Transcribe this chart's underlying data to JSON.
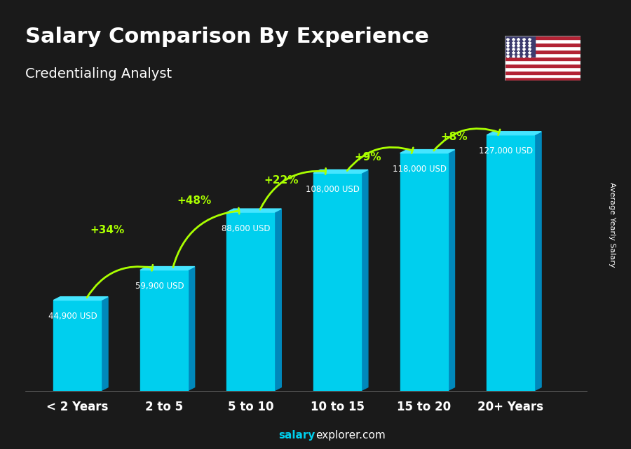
{
  "title": "Salary Comparison By Experience",
  "subtitle": "Credentialing Analyst",
  "ylabel": "Average Yearly Salary",
  "footer": "salaryexplorer.com",
  "categories": [
    "< 2 Years",
    "2 to 5",
    "5 to 10",
    "10 to 15",
    "15 to 20",
    "20+ Years"
  ],
  "values": [
    44900,
    59900,
    88600,
    108000,
    118000,
    127000
  ],
  "salary_labels": [
    "44,900 USD",
    "59,900 USD",
    "88,600 USD",
    "108,000 USD",
    "118,000 USD",
    "127,000 USD"
  ],
  "pct_labels": [
    "+34%",
    "+48%",
    "+22%",
    "+9%",
    "+8%"
  ],
  "bar_color_top": "#00CFFF",
  "bar_color_mid": "#00AADD",
  "bar_color_side": "#007AAA",
  "bar_color_bottom": "#005580",
  "bg_color": "#2a2a2a",
  "title_color": "#FFFFFF",
  "subtitle_color": "#FFFFFF",
  "salary_label_color": "#FFFFFF",
  "pct_color": "#AAFF00",
  "axis_label_color": "#FFFFFF",
  "footer_bold": "salary",
  "footer_normal": "explorer.com",
  "ylim": [
    0,
    145000
  ],
  "bar_width": 0.55
}
